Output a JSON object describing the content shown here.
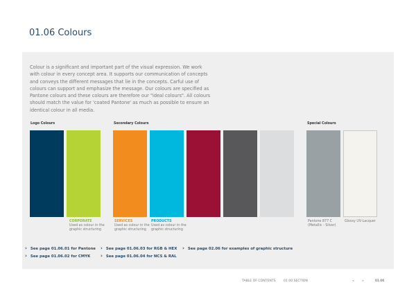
{
  "header": {
    "title": "01.06 Colours"
  },
  "body": {
    "text": "Colour is a significant and important part of the visual expression. We work with colour in every concept area. It supports our communication of concepts and conveys the different messages that lie in the concepts. Carful use of colours can support and emphasize the message. Our colours are specified as Pantone colours and these colours are therefore our \"ideal colours\". All colours should match the value for 'coated Pantone' as much as possible to ensure an identical colour in all media."
  },
  "groups": [
    "Logo Colours",
    "Secondary Colours",
    "Special Colours"
  ],
  "captions": [
    {
      "title": "CORPORATE",
      "text": "Used as colour in the graphic structuring"
    },
    {
      "title": "SERVICES",
      "text": "Used as colour in the graphic structuring"
    },
    {
      "title": "PRODUCTS",
      "text": "Used as colour in the graphic structuring"
    },
    {
      "text": "Pantone 877 C (Metallic - Silver)"
    },
    {
      "text": "Glossy UV-Lacquer"
    }
  ],
  "links": [
    "See page 01.06.01 for Pantone",
    "See page 01.06.03 for RGB & HEX",
    "See page 02.06 for examples of graphic structure",
    "See page 01.06.02 for CMYK",
    "See page 01.06.04 for NCS & RAL"
  ],
  "footer": {
    "toc": "TABLE OF CONTENTS",
    "section": "01.00 SECTION",
    "prev": "«",
    "next": "»",
    "page": "01.06"
  }
}
